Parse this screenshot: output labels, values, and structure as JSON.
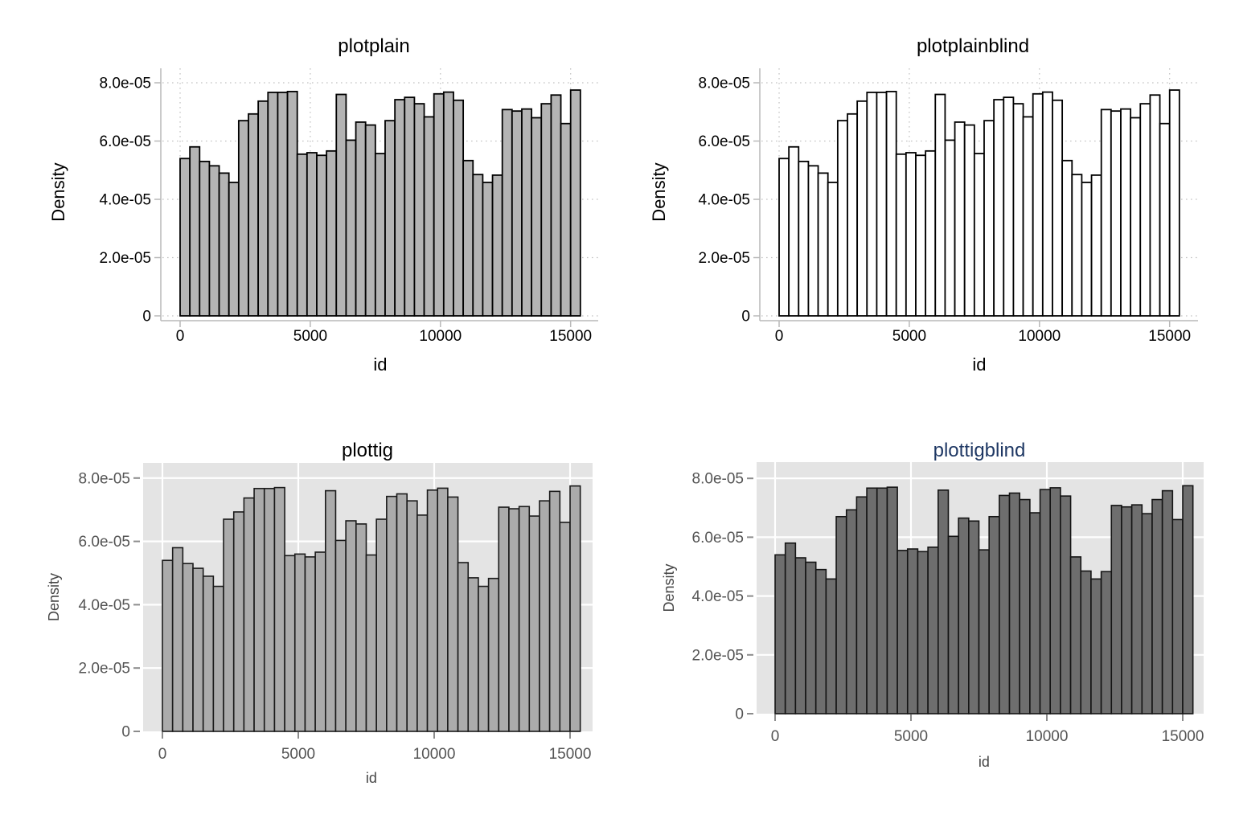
{
  "chart_data": {
    "type": "bar",
    "subtype": "histogram-small-multiples",
    "description": "Same histogram of variable id rendered in four Stata graph schemes",
    "xlabel": "id",
    "ylabel": "Density",
    "xlim": [
      0,
      15375
    ],
    "ylim": [
      0,
      8.5e-05
    ],
    "bin_start": 0,
    "bin_width": 375,
    "n_bins": 41,
    "x_ticks": [
      0,
      5000,
      10000,
      15000
    ],
    "x_tick_labels": [
      "0",
      "5000",
      "10000",
      "15000"
    ],
    "y_ticks": [
      0,
      2e-05,
      4e-05,
      6e-05,
      8e-05
    ],
    "y_tick_labels": [
      "0",
      "2.0e-05",
      "4.0e-05",
      "6.0e-05",
      "8.0e-05"
    ],
    "grid": true,
    "legend": "none",
    "values": [
      5.4e-05,
      5.8e-05,
      5.3e-05,
      5.15e-05,
      4.9e-05,
      4.58e-05,
      6.7e-05,
      6.93e-05,
      7.37e-05,
      7.67e-05,
      7.67e-05,
      7.7e-05,
      5.55e-05,
      5.6e-05,
      5.51e-05,
      5.66e-05,
      7.6e-05,
      6.03e-05,
      6.65e-05,
      6.55e-05,
      5.57e-05,
      6.7e-05,
      7.42e-05,
      7.5e-05,
      7.28e-05,
      6.83e-05,
      7.62e-05,
      7.68e-05,
      7.4e-05,
      5.33e-05,
      4.85e-05,
      4.58e-05,
      4.83e-05,
      7.08e-05,
      7.03e-05,
      7.1e-05,
      6.8e-05,
      7.28e-05,
      7.58e-05,
      6.6e-05,
      7.75e-05
    ],
    "panels": [
      {
        "title": "plotplain",
        "title_color": "#000000",
        "plot_bg": "#ffffff",
        "bar_fill": "#b4b4b4",
        "bar_stroke": "#000000",
        "grid_color": "#c2c2c2",
        "grid_style": "dotted",
        "axis_color": "#b9b9b9",
        "tick_label_color": "#000000",
        "axis_label_color": "#000000"
      },
      {
        "title": "plotplainblind",
        "title_color": "#000000",
        "plot_bg": "#ffffff",
        "bar_fill": "#ffffff",
        "bar_stroke": "#000000",
        "grid_color": "#c2c2c2",
        "grid_style": "dotted",
        "axis_color": "#b9b9b9",
        "tick_label_color": "#000000",
        "axis_label_color": "#000000"
      },
      {
        "title": "plottig",
        "title_color": "#000000",
        "plot_bg": "#e4e4e4",
        "bar_fill": "#ababab",
        "bar_stroke": "#1a1a1a",
        "grid_color": "#ffffff",
        "grid_style": "solid",
        "axis_color": "#8c8c8c",
        "tick_label_color": "#545454",
        "axis_label_color": "#464646"
      },
      {
        "title": "plottigblind",
        "title_color": "#1f3864",
        "plot_bg": "#e4e4e4",
        "bar_fill": "#6e6e6e",
        "bar_stroke": "#141414",
        "grid_color": "#ffffff",
        "grid_style": "solid",
        "axis_color": "#8c8c8c",
        "tick_label_color": "#545454",
        "axis_label_color": "#464646"
      }
    ]
  }
}
